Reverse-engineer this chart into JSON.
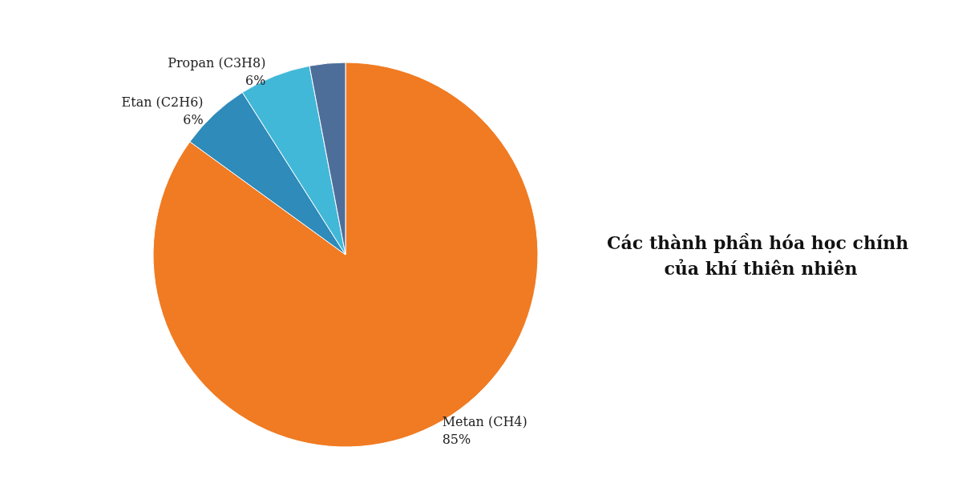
{
  "chart_data": {
    "type": "pie",
    "title": "Các thành phần hóa học chính của khí thiên nhiên",
    "categories": [
      "Metan (CH4)",
      "Etan (C2H6)",
      "Propan (C3H8)",
      null
    ],
    "values": [
      85,
      6,
      6,
      3
    ],
    "value_labels": [
      "85%",
      "6%",
      "6%",
      null
    ],
    "colors": [
      "#f07b22",
      "#2e8bba",
      "#42b8d8",
      "#4e6e9a"
    ],
    "legend": false
  }
}
